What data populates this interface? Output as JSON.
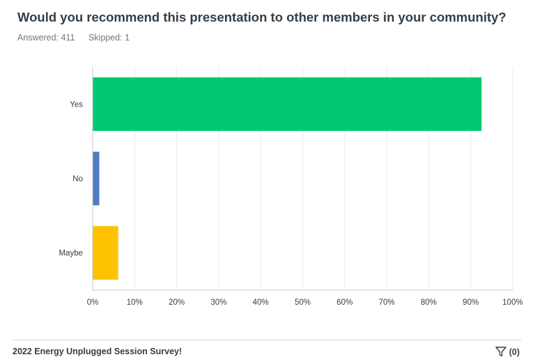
{
  "question": {
    "title": "Would you recommend this presentation to other members in your community?",
    "answered_label": "Answered: 411",
    "skipped_label": "Skipped: 1"
  },
  "chart_data": {
    "type": "bar",
    "orientation": "horizontal",
    "categories": [
      "Yes",
      "No",
      "Maybe"
    ],
    "values": [
      92.5,
      1.5,
      6.0
    ],
    "colors": [
      "#00c875",
      "#507cc0",
      "#ffc200"
    ],
    "x_ticks": [
      "0%",
      "10%",
      "20%",
      "30%",
      "40%",
      "50%",
      "60%",
      "70%",
      "80%",
      "90%",
      "100%"
    ],
    "xlim": [
      0,
      100
    ],
    "grid": true,
    "title": "",
    "xlabel": "",
    "ylabel": ""
  },
  "footer": {
    "survey_title": "2022 Energy Unplugged Session Survey!",
    "filter_label": "(0)"
  }
}
